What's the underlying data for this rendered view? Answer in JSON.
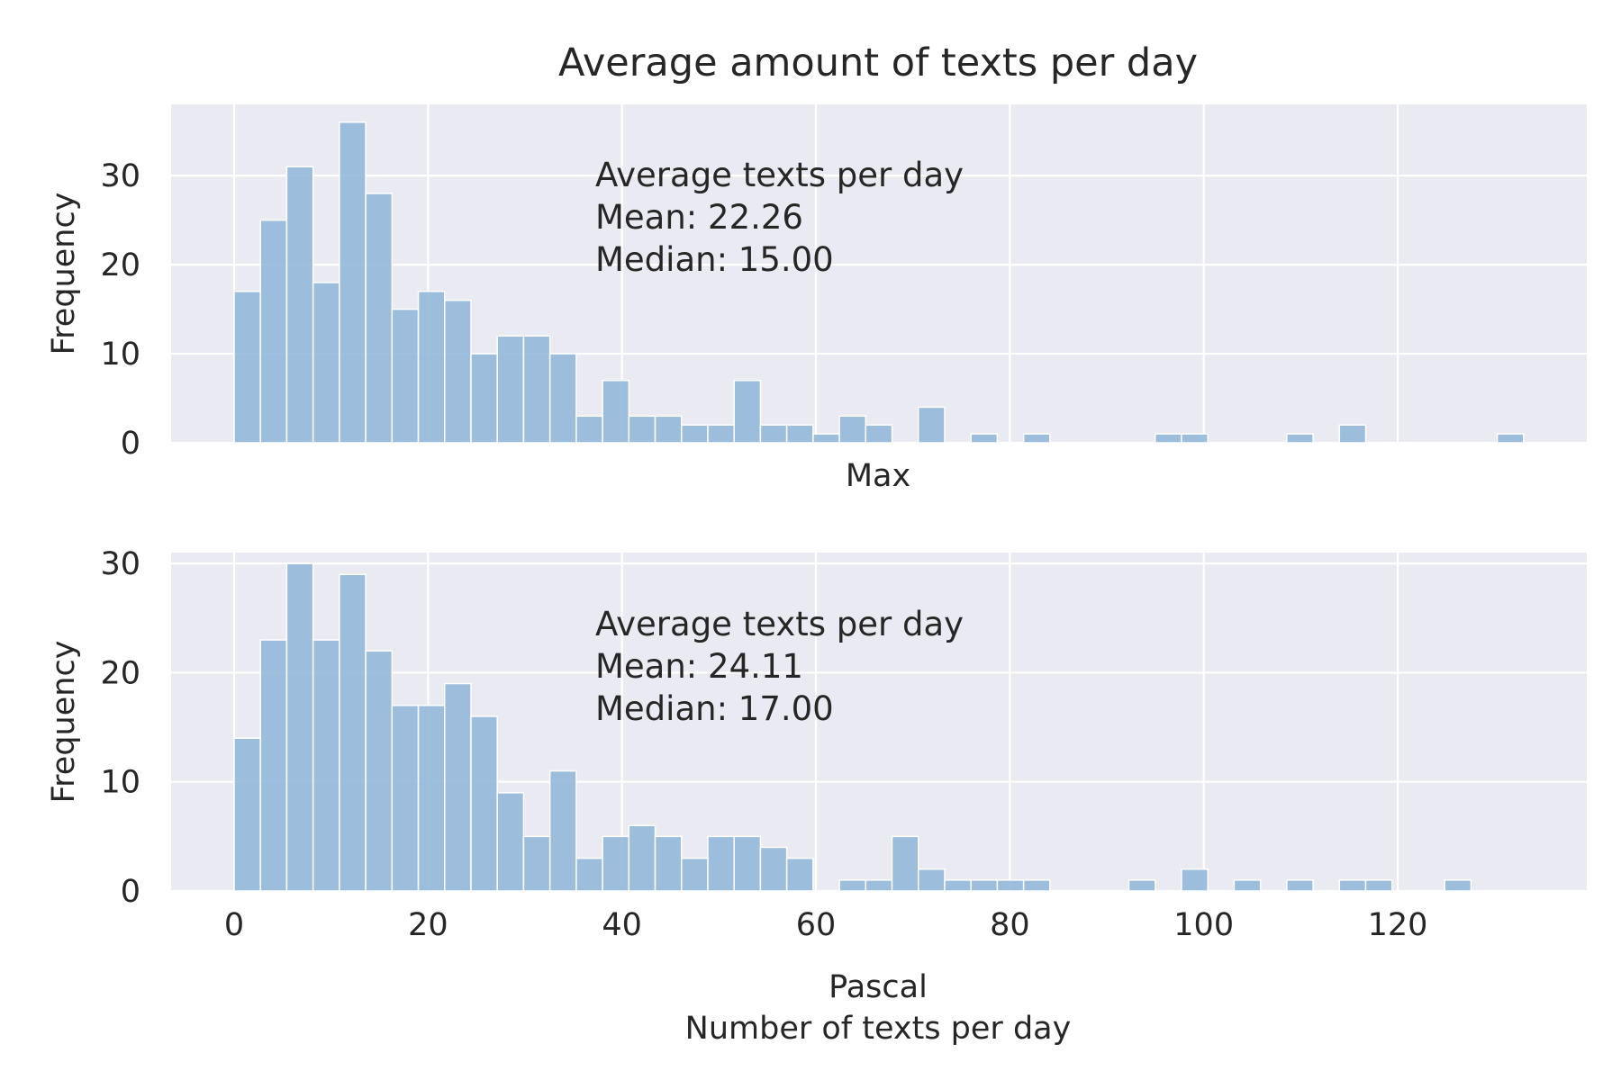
{
  "chart_data": {
    "title": "Average amount of texts per day",
    "type": "bar",
    "subplots": [
      {
        "id": "top",
        "type": "bar",
        "xlabel": "Max",
        "ylabel": "Frequency",
        "ylim": [
          0,
          38
        ],
        "yticks": [
          0,
          10,
          20,
          30
        ],
        "xlim": [
          -6.5,
          139.5
        ],
        "show_xtick_labels": false,
        "bins": {
          "start": 0,
          "width": 2.714,
          "counts": [
            17,
            25,
            31,
            18,
            36,
            28,
            15,
            17,
            16,
            10,
            12,
            12,
            10,
            3,
            7,
            3,
            3,
            2,
            2,
            7,
            2,
            2,
            1,
            3,
            2,
            0,
            4,
            0,
            1,
            0,
            1,
            0,
            0,
            0,
            0,
            1,
            1,
            0,
            0,
            0,
            1,
            0,
            2,
            0,
            0,
            0,
            0,
            0,
            1
          ]
        },
        "annotation": [
          "Average texts per day",
          "Mean: 22.26",
          "Median: 15.00"
        ]
      },
      {
        "id": "bottom",
        "type": "bar",
        "xlabel_lines": [
          "Pascal",
          "Number of texts per day"
        ],
        "ylabel": "Frequency",
        "ylim": [
          0,
          31
        ],
        "yticks": [
          0,
          10,
          20,
          30
        ],
        "xlim": [
          -6.5,
          139.5
        ],
        "show_xtick_labels": true,
        "bins": {
          "start": 0,
          "width": 2.714,
          "counts": [
            14,
            23,
            30,
            23,
            29,
            22,
            17,
            17,
            19,
            16,
            9,
            5,
            11,
            3,
            5,
            6,
            5,
            3,
            5,
            5,
            4,
            3,
            0,
            1,
            1,
            5,
            2,
            1,
            1,
            1,
            1,
            0,
            0,
            0,
            1,
            0,
            2,
            0,
            1,
            0,
            1,
            0,
            1,
            1,
            0,
            0,
            1
          ]
        },
        "annotation": [
          "Average texts per day",
          "Mean: 24.11",
          "Median: 17.00"
        ]
      }
    ],
    "xticks": [
      0,
      20,
      40,
      60,
      80,
      100,
      120
    ],
    "grid": true,
    "colors": {
      "bar": "#94b8d9",
      "background": "#eaeaf2",
      "grid": "#ffffff",
      "text": "#262626"
    }
  }
}
